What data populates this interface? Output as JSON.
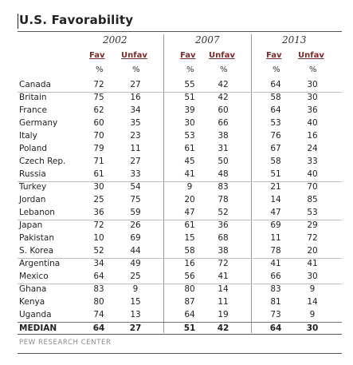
{
  "title": "U.S. Favorability",
  "years": [
    "2002",
    "2007",
    "2013"
  ],
  "col_fav": "Fav",
  "col_unfav": "Unfav",
  "pct": "%",
  "groups": [
    [
      {
        "country": "Canada",
        "values": [
          "72",
          "27",
          "55",
          "42",
          "64",
          "30"
        ]
      }
    ],
    [
      {
        "country": "Britain",
        "values": [
          "75",
          "16",
          "51",
          "42",
          "58",
          "30"
        ]
      },
      {
        "country": "France",
        "values": [
          "62",
          "34",
          "39",
          "60",
          "64",
          "36"
        ]
      },
      {
        "country": "Germany",
        "values": [
          "60",
          "35",
          "30",
          "66",
          "53",
          "40"
        ]
      },
      {
        "country": "Italy",
        "values": [
          "70",
          "23",
          "53",
          "38",
          "76",
          "16"
        ]
      },
      {
        "country": "Poland",
        "values": [
          "79",
          "11",
          "61",
          "31",
          "67",
          "24"
        ]
      },
      {
        "country": "Czech Rep.",
        "values": [
          "71",
          "27",
          "45",
          "50",
          "58",
          "33"
        ]
      },
      {
        "country": "Russia",
        "values": [
          "61",
          "33",
          "41",
          "48",
          "51",
          "40"
        ]
      }
    ],
    [
      {
        "country": "Turkey",
        "values": [
          "30",
          "54",
          "9",
          "83",
          "21",
          "70"
        ]
      },
      {
        "country": "Jordan",
        "values": [
          "25",
          "75",
          "20",
          "78",
          "14",
          "85"
        ]
      },
      {
        "country": "Lebanon",
        "values": [
          "36",
          "59",
          "47",
          "52",
          "47",
          "53"
        ]
      }
    ],
    [
      {
        "country": "Japan",
        "values": [
          "72",
          "26",
          "61",
          "36",
          "69",
          "29"
        ]
      },
      {
        "country": "Pakistan",
        "values": [
          "10",
          "69",
          "15",
          "68",
          "11",
          "72"
        ]
      },
      {
        "country": "S. Korea",
        "values": [
          "52",
          "44",
          "58",
          "38",
          "78",
          "20"
        ]
      }
    ],
    [
      {
        "country": "Argentina",
        "values": [
          "34",
          "49",
          "16",
          "72",
          "41",
          "41"
        ]
      },
      {
        "country": "Mexico",
        "values": [
          "64",
          "25",
          "56",
          "41",
          "66",
          "30"
        ]
      }
    ],
    [
      {
        "country": "Ghana",
        "values": [
          "83",
          "9",
          "80",
          "14",
          "83",
          "9"
        ]
      },
      {
        "country": "Kenya",
        "values": [
          "80",
          "15",
          "87",
          "11",
          "81",
          "14"
        ]
      },
      {
        "country": "Uganda",
        "values": [
          "74",
          "13",
          "64",
          "19",
          "73",
          "9"
        ]
      }
    ]
  ],
  "median": {
    "label": "MEDIAN",
    "values": [
      "64",
      "27",
      "51",
      "42",
      "64",
      "30"
    ]
  },
  "source": "PEW RESEARCH CENTER"
}
